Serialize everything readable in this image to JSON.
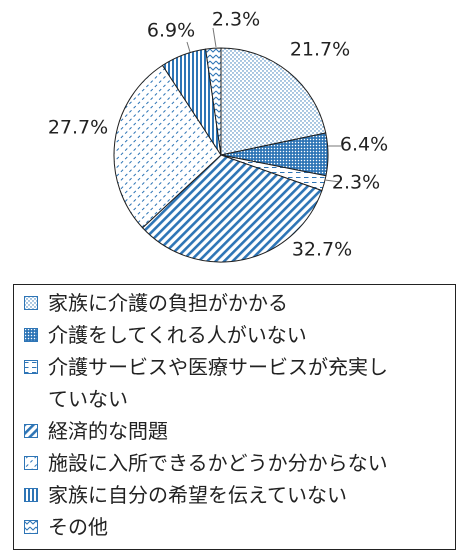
{
  "chart_data": {
    "type": "pie",
    "start_angle_deg": 0,
    "direction": "clockwise",
    "legend_position": "bottom",
    "slices": [
      {
        "label": "家族に介護の負担がかかる",
        "value": 21.7,
        "value_label": "21.7%",
        "pattern": "dots-fine",
        "color": "#2e75b6"
      },
      {
        "label": "介護をしてくれる人がいない",
        "value": 6.4,
        "value_label": "6.4%",
        "pattern": "dots-dense",
        "color": "#2e75b6"
      },
      {
        "label": "介護サービスや医療サービスが充実していない",
        "value": 2.3,
        "value_label": "2.3%",
        "pattern": "hdash",
        "color": "#2e75b6"
      },
      {
        "label": "経済的な問題",
        "value": 32.7,
        "value_label": "32.7%",
        "pattern": "diag-down",
        "color": "#2e75b6"
      },
      {
        "label": "施設に入所できるかどうか分からない",
        "value": 27.7,
        "value_label": "27.7%",
        "pattern": "diag-up-dash",
        "color": "#2e75b6"
      },
      {
        "label": "家族に自分の希望を伝えていない",
        "value": 6.9,
        "value_label": "6.9%",
        "pattern": "vertical",
        "color": "#2e75b6"
      },
      {
        "label": "その他",
        "value": 2.3,
        "value_label": "2.3%",
        "pattern": "zigzag",
        "color": "#2e75b6"
      }
    ]
  },
  "legend": {
    "items": [
      "家族に介護の負担がかかる",
      "介護をしてくれる人がいない",
      "介護サービスや医療サービスが充実し\nていない",
      "経済的な問題",
      "施設に入所できるかどうか分からない",
      "家族に自分の希望を伝えていない",
      "その他"
    ]
  }
}
